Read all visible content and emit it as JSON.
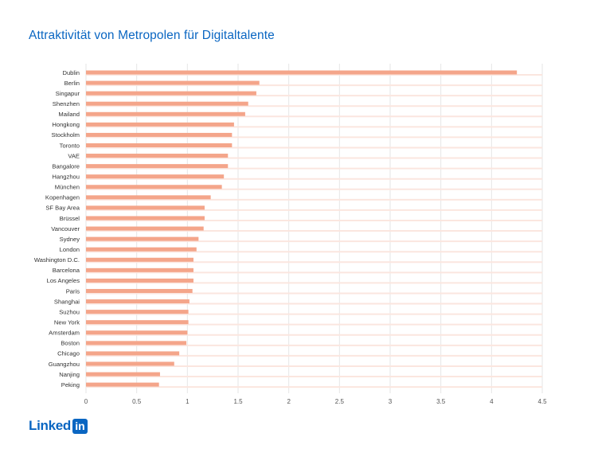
{
  "chart_data": {
    "type": "bar",
    "orientation": "horizontal",
    "title": "Attraktivität von Metropolen für Digitaltalente",
    "xlabel": "",
    "ylabel": "",
    "xlim": [
      0,
      4.5
    ],
    "xticks": [
      "0",
      "0.5",
      "1",
      "1.5",
      "2",
      "2.5",
      "3",
      "3.5",
      "4",
      "4.5"
    ],
    "grid": true,
    "bar_color": "#f4a58a",
    "categories": [
      "Dublin",
      "Berlin",
      "Singapur",
      "Shenzhen",
      "Mailand",
      "Hongkong",
      "Stockholm",
      "Toronto",
      "VAE",
      "Bangalore",
      "Hangzhou",
      "München",
      "Kopenhagen",
      "SF Bay Area",
      "Brüssel",
      "Vancouver",
      "Sydney",
      "London",
      "Washington D.C.",
      "Barcelona",
      "Los Angeles",
      "Paris",
      "Shanghai",
      "Suzhou",
      "New York",
      "Amsterdam",
      "Boston",
      "Chicago",
      "Guangzhou",
      "Nanjing",
      "Peking"
    ],
    "values": [
      4.25,
      1.71,
      1.68,
      1.6,
      1.57,
      1.46,
      1.44,
      1.44,
      1.4,
      1.4,
      1.36,
      1.34,
      1.23,
      1.17,
      1.17,
      1.16,
      1.11,
      1.09,
      1.06,
      1.06,
      1.06,
      1.05,
      1.02,
      1.01,
      1.01,
      1.0,
      0.99,
      0.92,
      0.87,
      0.73,
      0.72
    ]
  },
  "brand": {
    "logo_text": "Linked",
    "logo_box": "in",
    "color": "#0a66c2"
  }
}
